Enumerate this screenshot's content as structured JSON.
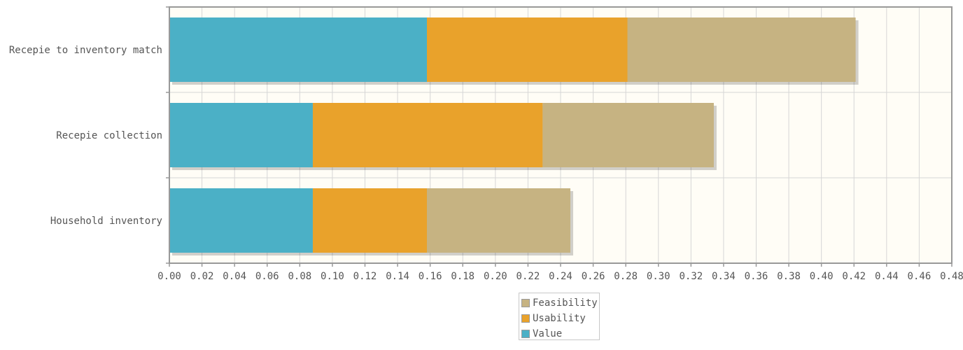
{
  "chart_data": {
    "type": "bar",
    "orientation": "horizontal",
    "stacked": true,
    "categories": [
      "Recepie to inventory match",
      "Recepie collection",
      "Household inventory"
    ],
    "series": [
      {
        "name": "Value",
        "color": "#4bb0c6",
        "values": [
          0.158,
          0.088,
          0.088
        ]
      },
      {
        "name": "Usability",
        "color": "#e9a22b",
        "values": [
          0.123,
          0.141,
          0.07
        ]
      },
      {
        "name": "Feasibility",
        "color": "#c6b382",
        "values": [
          0.14,
          0.105,
          0.088
        ]
      }
    ],
    "xlim": [
      0,
      0.48
    ],
    "xticks": [
      "0.00",
      "0.02",
      "0.04",
      "0.06",
      "0.08",
      "0.10",
      "0.12",
      "0.14",
      "0.16",
      "0.18",
      "0.20",
      "0.22",
      "0.24",
      "0.26",
      "0.28",
      "0.30",
      "0.32",
      "0.34",
      "0.36",
      "0.38",
      "0.40",
      "0.42",
      "0.44",
      "0.46",
      "0.48"
    ],
    "grid": true,
    "legend_position": "bottom-center",
    "legend_order": [
      "Feasibility",
      "Usability",
      "Value"
    ],
    "title": "",
    "xlabel": "",
    "ylabel": ""
  }
}
